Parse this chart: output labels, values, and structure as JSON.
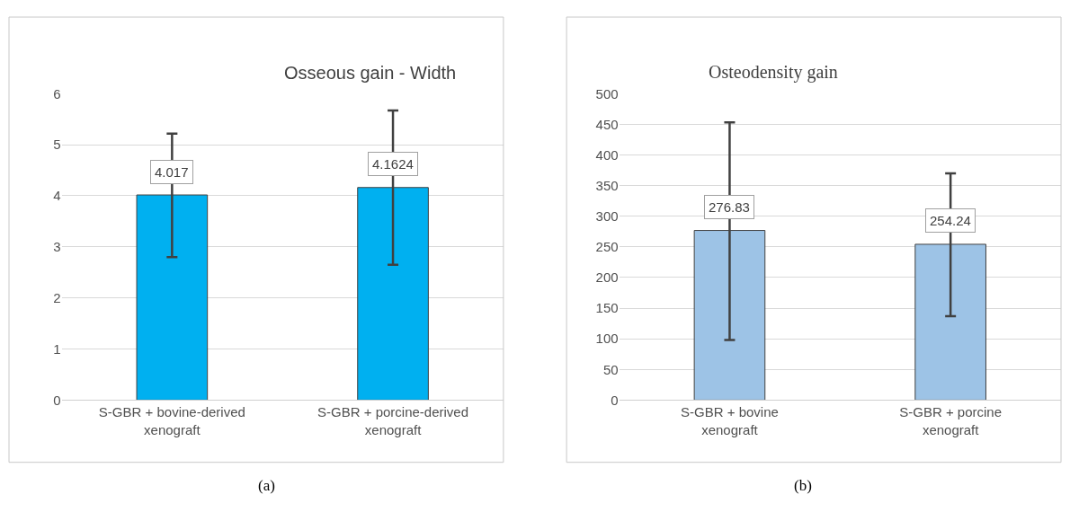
{
  "chart_data": [
    {
      "type": "bar",
      "title": "Osseous gain - Width",
      "categories": [
        "S-GBR + bovine-derived\nxenograft",
        "S-GBR + porcine-derived\nxenograft"
      ],
      "values": [
        4.017,
        4.1624
      ],
      "color": "#00b0f0",
      "errors": [
        [
          2.8,
          5.22
        ],
        [
          2.65,
          5.67
        ]
      ],
      "ylim": [
        0,
        6
      ],
      "yticks": [
        0,
        1,
        2,
        3,
        4,
        5,
        6
      ],
      "grid": "y",
      "data_labels": true,
      "annotations": [
        "(a)"
      ]
    },
    {
      "type": "bar",
      "title": "Osteodensity gain",
      "categories": [
        "S-GBR + bovine\nxenograft",
        "S-GBR + porcine\nxenograft"
      ],
      "values": [
        276.83,
        254.24
      ],
      "color": "#9dc3e6",
      "errors": [
        [
          98,
          453
        ],
        [
          137,
          370
        ]
      ],
      "ylim": [
        0,
        500
      ],
      "yticks": [
        0,
        50,
        100,
        150,
        200,
        250,
        300,
        350,
        400,
        450,
        500
      ],
      "grid": "y",
      "data_labels": true,
      "annotations": [
        "(b)"
      ]
    }
  ]
}
